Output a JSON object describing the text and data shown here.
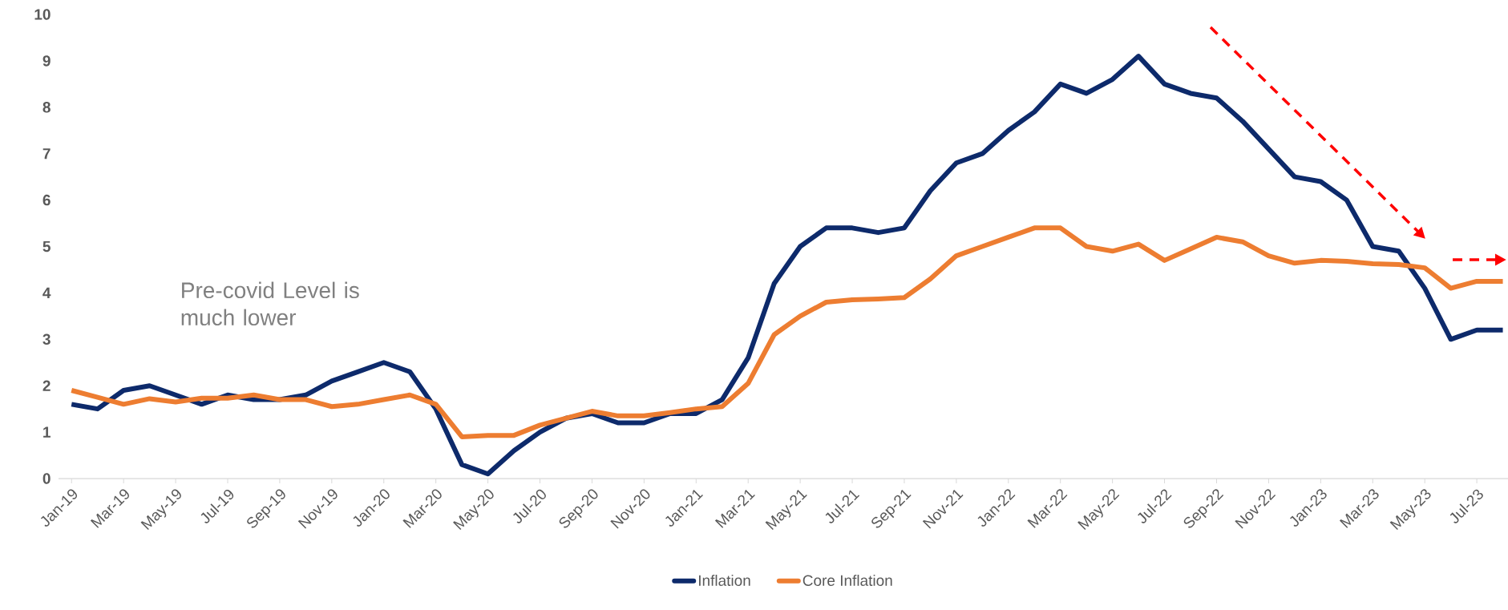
{
  "chart_data": {
    "type": "line",
    "categories": [
      "Jan-19",
      null,
      "Mar-19",
      null,
      "May-19",
      null,
      "Jul-19",
      null,
      "Sep-19",
      null,
      "Nov-19",
      null,
      "Jan-20",
      null,
      "Mar-20",
      null,
      "May-20",
      null,
      "Jul-20",
      null,
      "Sep-20",
      null,
      "Nov-20",
      null,
      "Jan-21",
      null,
      "Mar-21",
      null,
      "May-21",
      null,
      "Jul-21",
      null,
      "Sep-21",
      null,
      "Nov-21",
      null,
      "Jan-22",
      null,
      "Mar-22",
      null,
      "May-22",
      null,
      "Jul-22",
      null,
      "Sep-22",
      null,
      "Nov-22",
      null,
      "Jan-23",
      null,
      "Mar-23",
      null,
      "May-23",
      null,
      "Jul-23",
      null
    ],
    "series": [
      {
        "name": "Inflation",
        "color": "#0d2a6b",
        "values": [
          1.6,
          1.5,
          1.9,
          2.0,
          1.8,
          1.6,
          1.8,
          1.7,
          1.7,
          1.8,
          2.1,
          2.3,
          2.5,
          2.3,
          1.5,
          0.3,
          0.1,
          0.6,
          1.0,
          1.3,
          1.4,
          1.2,
          1.2,
          1.4,
          1.4,
          1.7,
          2.6,
          4.2,
          5.0,
          5.4,
          5.4,
          5.3,
          5.4,
          6.2,
          6.8,
          7.0,
          7.5,
          7.9,
          8.5,
          8.3,
          8.6,
          9.1,
          8.5,
          8.3,
          8.2,
          7.7,
          7.1,
          6.5,
          6.4,
          6.0,
          5.0,
          4.9,
          4.1,
          3.0,
          3.2,
          3.2
        ]
      },
      {
        "name": "Core Inflation",
        "color": "#ed7d31",
        "values": [
          1.9,
          1.75,
          1.6,
          1.72,
          1.65,
          1.73,
          1.73,
          1.8,
          1.7,
          1.7,
          1.55,
          1.6,
          1.7,
          1.8,
          1.6,
          0.9,
          0.93,
          0.93,
          1.15,
          1.3,
          1.45,
          1.35,
          1.35,
          1.42,
          1.5,
          1.55,
          2.05,
          3.1,
          3.5,
          3.8,
          3.85,
          3.87,
          3.9,
          4.3,
          4.8,
          5.0,
          5.2,
          5.4,
          5.4,
          5.0,
          4.9,
          5.05,
          4.7,
          4.95,
          5.2,
          5.1,
          4.8,
          4.64,
          4.7,
          4.68,
          4.63,
          4.61,
          4.54,
          4.1,
          4.25,
          4.25
        ]
      }
    ],
    "ylim": [
      0,
      10
    ],
    "yticks": [
      0,
      1,
      2,
      3,
      4,
      5,
      6,
      7,
      8,
      9,
      10
    ],
    "grid": false,
    "legend": "bottom",
    "marker": "none",
    "line_style": "solid",
    "annotations": [
      "Pre-covid Level is much lower"
    ]
  }
}
